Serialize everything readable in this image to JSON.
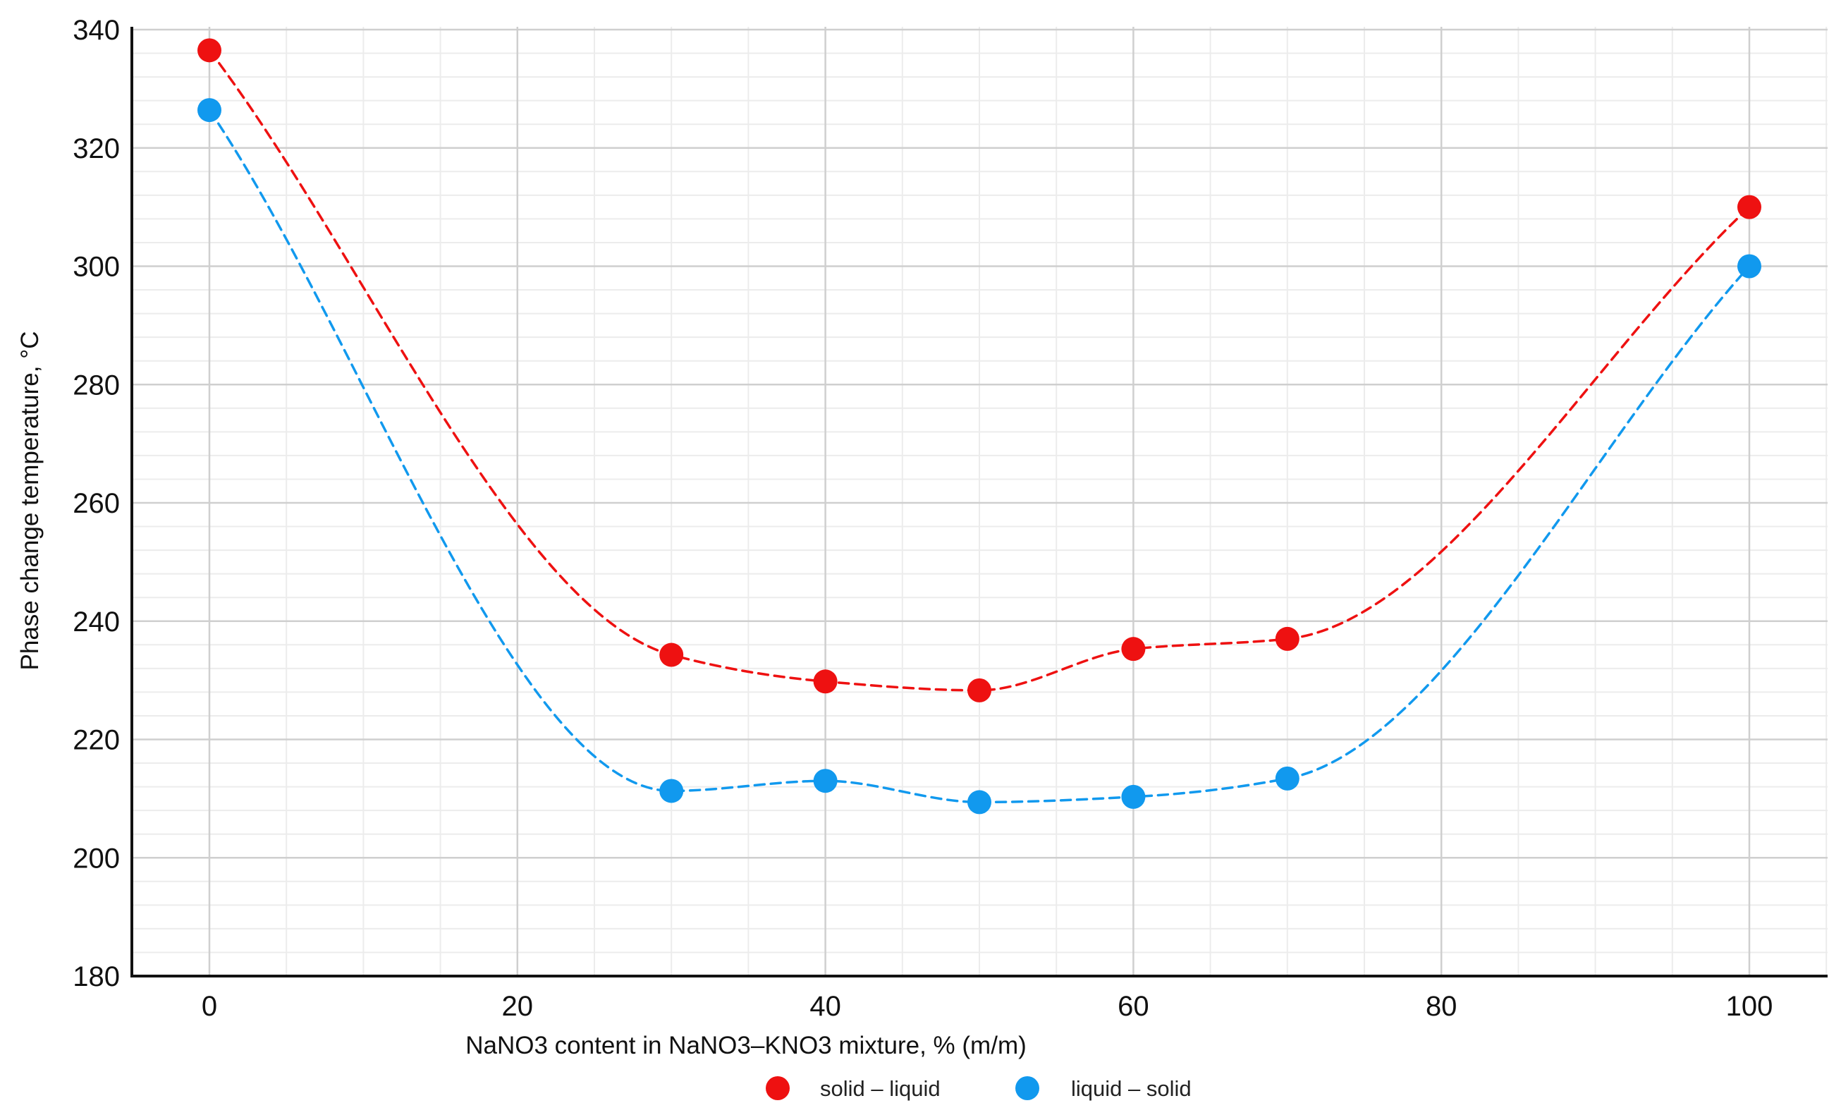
{
  "chart_data": {
    "type": "line",
    "title": "",
    "xlabel": "NaNO3 content in NaNO3–KNO3 mixture, % (m/m)",
    "ylabel": "Phase change temperature, °C",
    "xlim": [
      -5,
      105
    ],
    "ylim": [
      180,
      340
    ],
    "xticks": [
      0,
      20,
      40,
      60,
      80,
      100
    ],
    "yticks": [
      180,
      200,
      220,
      240,
      260,
      280,
      300,
      320,
      340
    ],
    "x_minor_step": 5,
    "y_minor_step": 4,
    "grid": true,
    "legend_position": "bottom-center",
    "line_style": "dashed smooth",
    "series": [
      {
        "name": "solid – liquid",
        "color": "#ee1111",
        "x": [
          0,
          30,
          40,
          50,
          60,
          70,
          100
        ],
        "values": [
          336.5,
          234.3,
          229.8,
          228.3,
          235.3,
          237.0,
          310.0
        ]
      },
      {
        "name": "liquid – solid",
        "color": "#1199ee",
        "x": [
          0,
          30,
          40,
          50,
          60,
          70,
          100
        ],
        "values": [
          326.4,
          211.3,
          213.0,
          209.4,
          210.3,
          213.4,
          300.0
        ]
      }
    ]
  }
}
